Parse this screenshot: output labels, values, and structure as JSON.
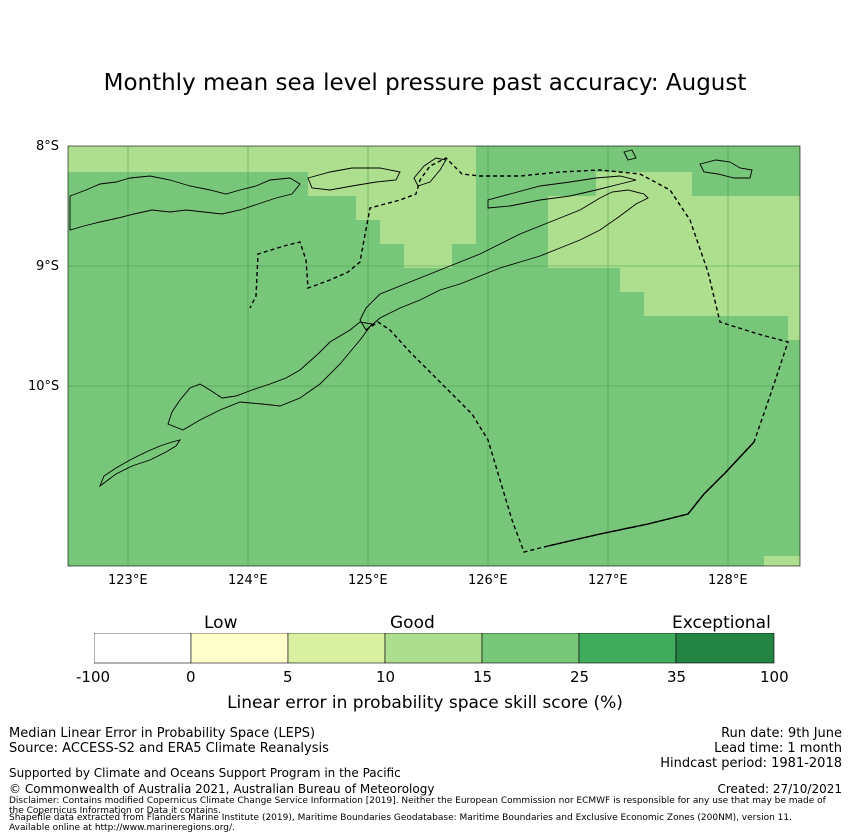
{
  "title": "Monthly mean sea level pressure past accuracy: August",
  "map": {
    "lat_labels": [
      "8°S",
      "9°S",
      "10°S"
    ],
    "lon_labels": [
      "123°E",
      "124°E",
      "125°E",
      "126°E",
      "127°E",
      "128°E"
    ],
    "colors": {
      "good_light": "#addf8e",
      "good_mid": "#78c679",
      "good_dark": "#41ab5d",
      "land_outline": "#000000"
    }
  },
  "colorbar": {
    "categories": [
      "Low",
      "Good",
      "Exceptional"
    ],
    "ticks": [
      "-100",
      "0",
      "5",
      "10",
      "15",
      "25",
      "35",
      "100"
    ],
    "colors": [
      "#ffffff",
      "#ffffcc",
      "#d9f0a3",
      "#addd8e",
      "#78c679",
      "#41ab5d",
      "#238443"
    ],
    "label": "Linear error in probability space skill score (%)"
  },
  "footer": {
    "left_line1": "Median Linear Error in Probability Space (LEPS)",
    "left_line2": "Source: ACCESS-S2 and ERA5 Climate Reanalysis",
    "support": "Supported by Climate and Oceans Support Program in the Pacific",
    "copyright": "© Commonwealth of Australia 2021, Australian Bureau of Meteorology",
    "disclaimer1": "Disclaimer: Contains modified Copernicus Climate Change Service Information [2019]. Neither the European Commission nor ECMWF is responsible for any use that may be made of",
    "disclaimer2": "the Copernicus Information or Data it contains.",
    "shapefile1": "Shapefile data extracted from Flanders Marine Institute (2019), Maritime Boundaries Geodatabase: Maritime Boundaries and Exclusive Economic Zones (200NM), version 11.",
    "shapefile2": "Available online at http://www.marineregions.org/.",
    "run_date": "Run date: 9th June",
    "lead_time": "Lead time: 1 month",
    "hindcast": "Hindcast period: 1981-2018",
    "created": "Created: 27/10/2021"
  }
}
